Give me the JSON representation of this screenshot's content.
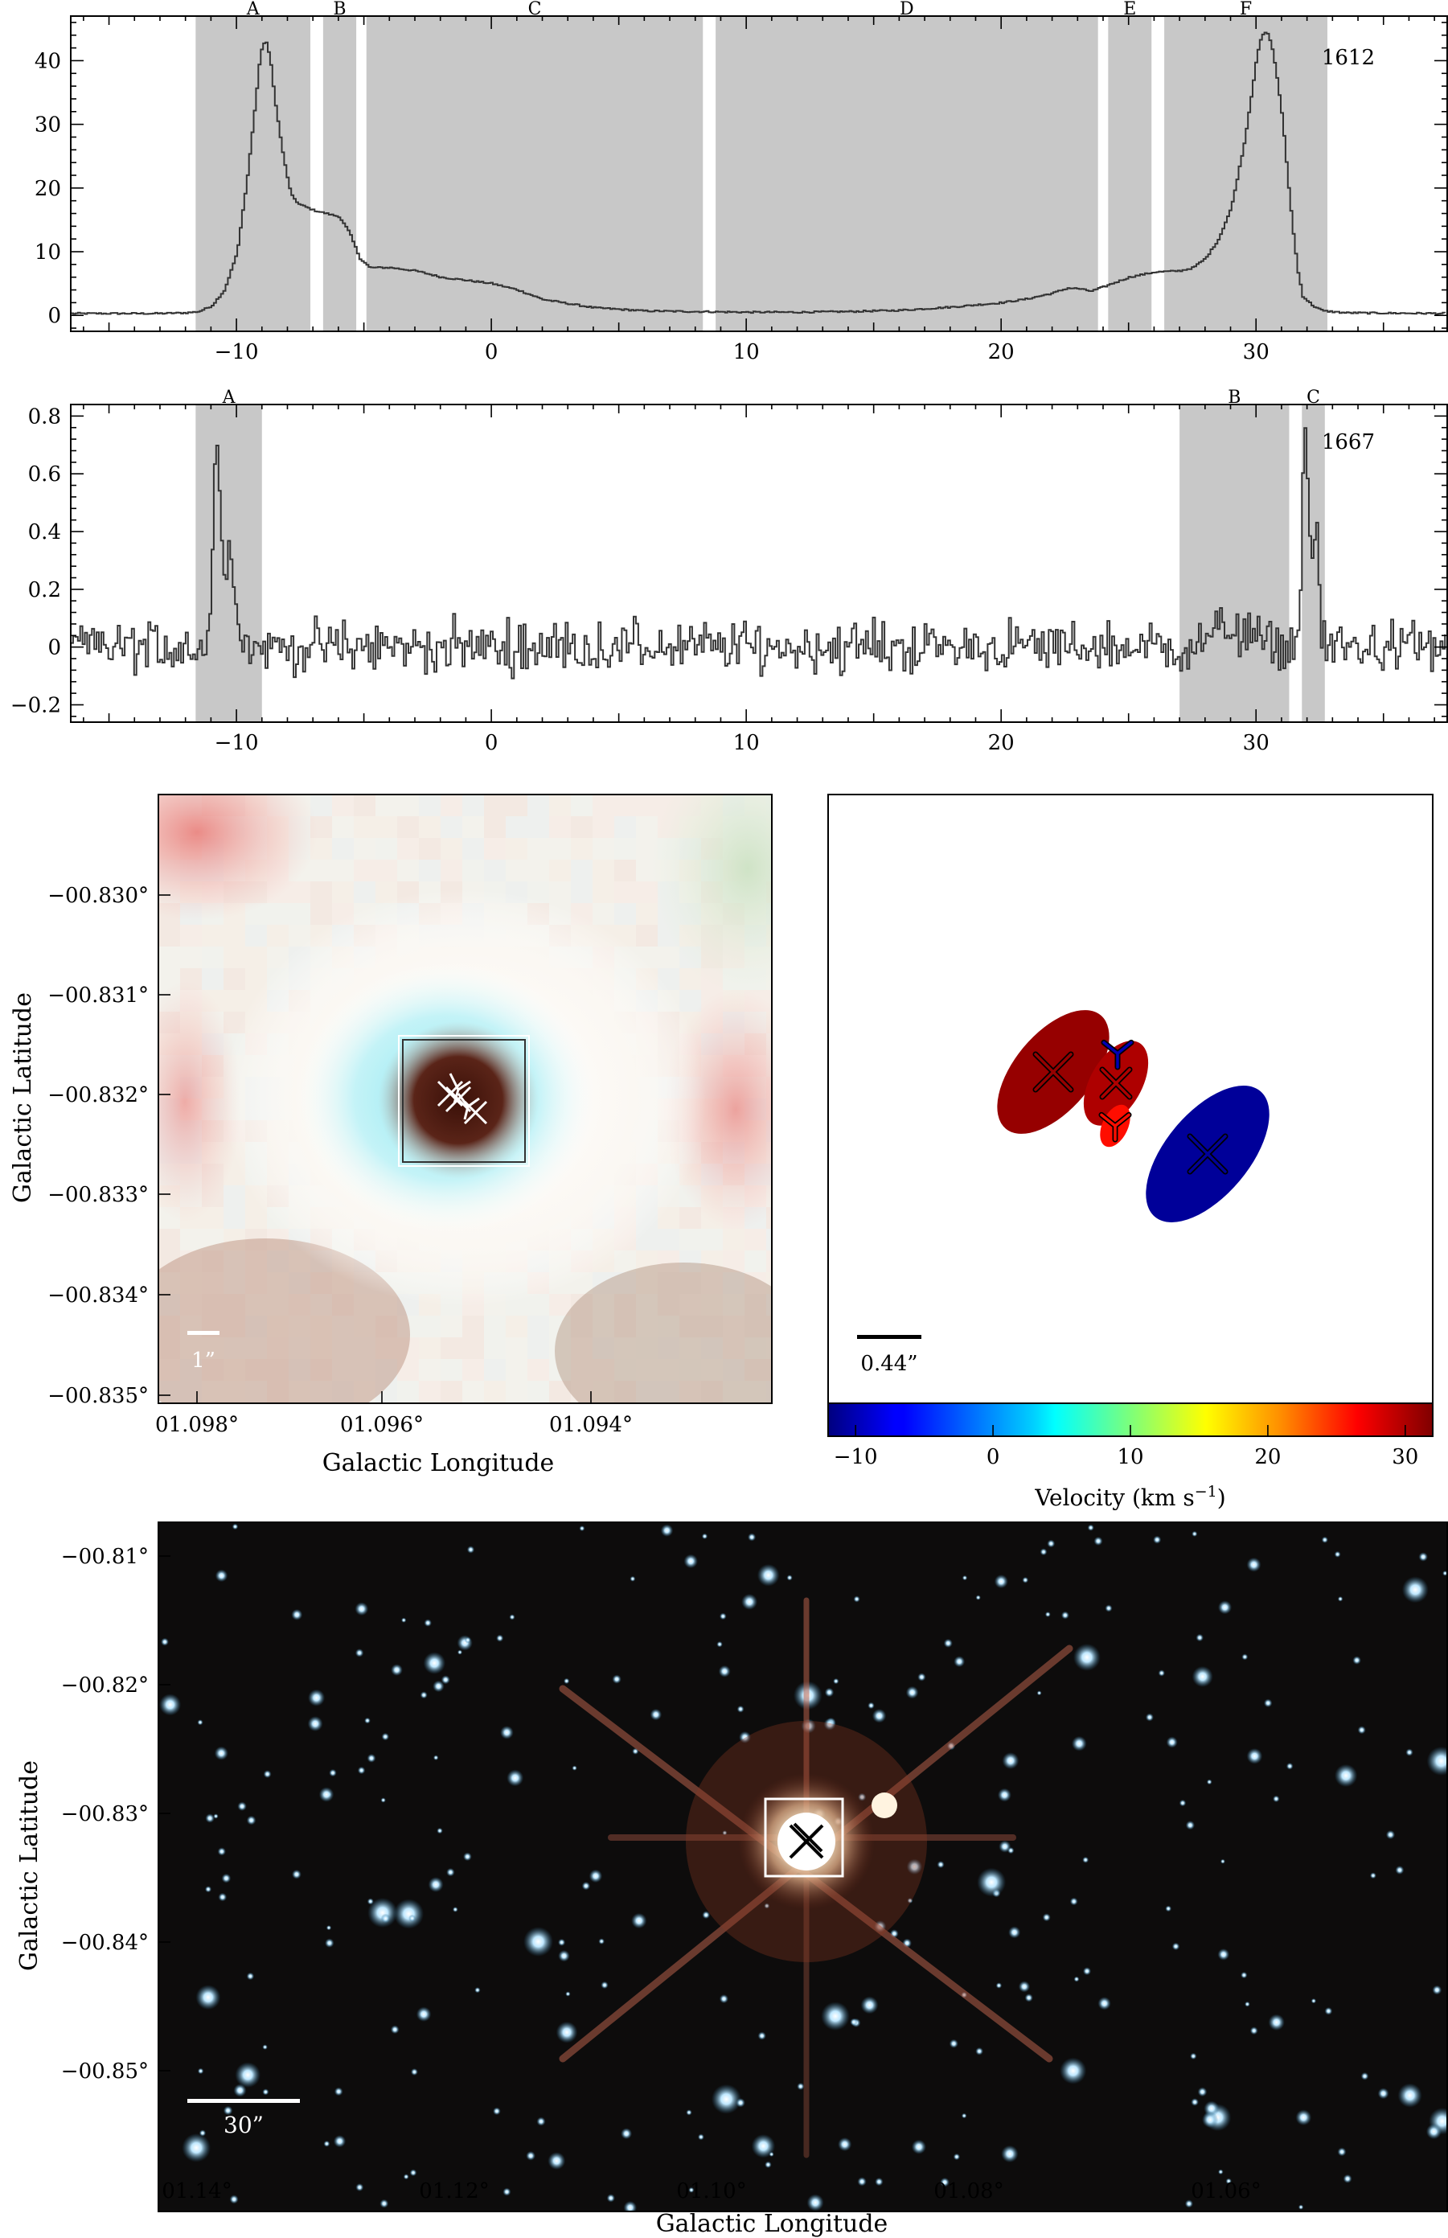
{
  "chart_data": [
    {
      "type": "line",
      "label": "1612",
      "xlim": [
        -16.5,
        37.5
      ],
      "ylim": [
        -2.5,
        47
      ],
      "x_ticks": [
        -10,
        0,
        10,
        20,
        30
      ],
      "y_ticks": [
        0,
        10,
        20,
        30,
        40
      ],
      "shaded_ranges": [
        {
          "name": "A",
          "from": -11.6,
          "to": -7.1
        },
        {
          "name": "B",
          "from": -6.6,
          "to": -5.3
        },
        {
          "name": "C",
          "from": -4.9,
          "to": 8.3
        },
        {
          "name": "D",
          "from": 8.8,
          "to": 23.8
        },
        {
          "name": "E",
          "from": 24.2,
          "to": 25.9
        },
        {
          "name": "F",
          "from": 26.4,
          "to": 32.8
        }
      ],
      "series": [
        {
          "x": [
            -16.5,
            -13,
            -12,
            -11.5,
            -11,
            -10.5,
            -10,
            -9.6,
            -9.3,
            -9.1,
            -8.9,
            -8.7,
            -8.5,
            -8.2,
            -7.9,
            -7.6,
            -7.3,
            -7,
            -6.5,
            -6,
            -5.6,
            -5.2,
            -4.8,
            -4.4,
            -4,
            -3,
            -2,
            -1,
            0,
            1,
            2,
            4,
            6,
            8,
            10,
            12,
            14,
            16,
            18,
            20,
            21,
            22,
            22.6,
            23,
            23.5,
            24,
            25,
            26,
            27,
            27.5,
            28,
            28.5,
            29,
            29.5,
            29.8,
            30,
            30.2,
            30.4,
            30.6,
            30.8,
            31,
            31.2,
            31.4,
            31.6,
            31.8,
            32.2,
            32.6,
            33.5,
            37.5
          ],
          "y": [
            0.3,
            0.3,
            0.4,
            0.6,
            1.5,
            4,
            10,
            22,
            33,
            41,
            43.5,
            40,
            33,
            25,
            19,
            17.5,
            17,
            16.5,
            16,
            15.5,
            13,
            9,
            7.5,
            7.5,
            7.5,
            7,
            6,
            5.5,
            5,
            4,
            2.5,
            1.2,
            0.7,
            0.6,
            0.5,
            0.5,
            0.6,
            0.8,
            1.3,
            2,
            2.6,
            3.5,
            4.3,
            4.2,
            3.8,
            4.5,
            6,
            6.8,
            7,
            7.5,
            9,
            12,
            17,
            27,
            35,
            41,
            44,
            44.5,
            42,
            37,
            31,
            22,
            14,
            7,
            3,
            1.5,
            0.7,
            0.4,
            0.3
          ]
        }
      ]
    },
    {
      "type": "line",
      "label": "1667",
      "xlim": [
        -16.5,
        37.5
      ],
      "ylim": [
        -0.26,
        0.84
      ],
      "x_ticks": [
        -10,
        0,
        10,
        20,
        30
      ],
      "y_ticks": [
        -0.2,
        0,
        0.2,
        0.4,
        0.6,
        0.8
      ],
      "shaded_ranges": [
        {
          "name": "A",
          "from": -11.6,
          "to": -9.0
        },
        {
          "name": "B",
          "from": 27.0,
          "to": 31.3
        },
        {
          "name": "C",
          "from": 31.8,
          "to": 32.7
        }
      ],
      "peaks": [
        {
          "x": -10.8,
          "height": 0.68,
          "width": 0.35
        },
        {
          "x": -10.3,
          "height": 0.32,
          "width": 0.5
        },
        {
          "x": 31.9,
          "height": 0.77,
          "width": 0.3
        },
        {
          "x": 32.3,
          "height": 0.4,
          "width": 0.25
        },
        {
          "x": 29.0,
          "height": 0.07,
          "width": 1.5
        }
      ],
      "noise_rms": 0.055
    },
    {
      "type": "heatmap",
      "xlabel": "Galactic Longitude",
      "ylabel": "Galactic Latitude",
      "x_ticks": [
        "01.098°",
        "01.096°",
        "01.094°"
      ],
      "y_ticks": [
        "−00.830°",
        "−00.831°",
        "−00.832°",
        "−00.833°",
        "−00.834°",
        "−00.835°"
      ],
      "scale_bar": "1”"
    },
    {
      "type": "scatter",
      "xlabel": "Velocity (km s⁻¹)",
      "colorbar_ticks": [
        -10,
        0,
        10,
        20,
        30
      ],
      "colorbar_range": [
        -12,
        32
      ],
      "scale_bar": "0.44”",
      "markers": [
        {
          "velocity": 31,
          "marker": "x",
          "ellipse": "large"
        },
        {
          "velocity": 30,
          "marker": "x",
          "ellipse": "medium"
        },
        {
          "velocity": 26,
          "marker": "y",
          "ellipse": "small"
        },
        {
          "velocity": -10,
          "marker": "y",
          "ellipse": "none"
        },
        {
          "velocity": -11,
          "marker": "x",
          "ellipse": "large"
        }
      ]
    },
    {
      "type": "heatmap",
      "xlabel": "Galactic Longitude",
      "ylabel": "Galactic Latitude",
      "x_ticks": [
        "01.14°",
        "01.12°",
        "01.10°",
        "01.08°",
        "01.06°"
      ],
      "y_ticks": [
        "−00.81°",
        "−00.82°",
        "−00.83°",
        "−00.84°",
        "−00.85°"
      ],
      "scale_bar": "30”"
    }
  ]
}
